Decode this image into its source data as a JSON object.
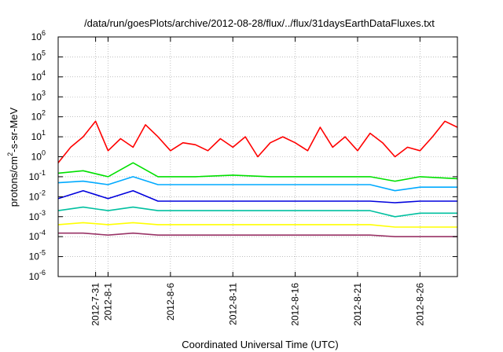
{
  "chart_data": {
    "type": "line",
    "title": "/data/run/goesPlots/archive/2012-08-28/flux/../flux/31daysEarthDataFluxes.txt",
    "xlabel": "Coordinated Universal Time (UTC)",
    "ylabel": "protons/cm2-s-sr-MeV",
    "ylabel_parts": {
      "base": "protons/cm",
      "sup": "2",
      "rest": "-s-sr-MeV"
    },
    "yscale": "log",
    "ylim": [
      1e-06,
      1000000.0
    ],
    "xlim": [
      "2012-07-28",
      "2012-08-29"
    ],
    "grid": true,
    "yticks": [
      {
        "value": 1e-06,
        "base": "10",
        "exp": "-6"
      },
      {
        "value": 1e-05,
        "base": "10",
        "exp": "-5"
      },
      {
        "value": 0.0001,
        "base": "10",
        "exp": "-4"
      },
      {
        "value": 0.001,
        "base": "10",
        "exp": "-3"
      },
      {
        "value": 0.01,
        "base": "10",
        "exp": "-2"
      },
      {
        "value": 0.1,
        "base": "10",
        "exp": "-1"
      },
      {
        "value": 1,
        "base": "10",
        "exp": "0"
      },
      {
        "value": 10.0,
        "base": "10",
        "exp": "1"
      },
      {
        "value": 100.0,
        "base": "10",
        "exp": "2"
      },
      {
        "value": 1000.0,
        "base": "10",
        "exp": "3"
      },
      {
        "value": 10000.0,
        "base": "10",
        "exp": "4"
      },
      {
        "value": 100000.0,
        "base": "10",
        "exp": "5"
      },
      {
        "value": 1000000.0,
        "base": "10",
        "exp": "6"
      }
    ],
    "xticks": [
      {
        "date": "2012-07-31",
        "label": "2012-7-31"
      },
      {
        "date": "2012-08-01",
        "label": "2012-8-1"
      },
      {
        "date": "2012-08-06",
        "label": "2012-8-6"
      },
      {
        "date": "2012-08-11",
        "label": "2012-8-11"
      },
      {
        "date": "2012-08-16",
        "label": "2012-8-16"
      },
      {
        "date": "2012-08-21",
        "label": "2012-8-21"
      },
      {
        "date": "2012-08-26",
        "label": "2012-8-26"
      }
    ],
    "colors": {
      "red": "#ff0000",
      "green": "#00e000",
      "cyan": "#00aaff",
      "blue": "#0000dd",
      "teal": "#00c0a0",
      "yellow": "#ffff00",
      "purple": "#993366"
    },
    "series": [
      {
        "color": "#ff0000",
        "x": [
          "2012-07-28",
          "2012-07-29",
          "2012-07-30",
          "2012-07-31",
          "2012-08-01",
          "2012-08-02",
          "2012-08-03",
          "2012-08-04",
          "2012-08-05",
          "2012-08-06",
          "2012-08-07",
          "2012-08-08",
          "2012-08-09",
          "2012-08-10",
          "2012-08-11",
          "2012-08-12",
          "2012-08-13",
          "2012-08-14",
          "2012-08-15",
          "2012-08-16",
          "2012-08-17",
          "2012-08-18",
          "2012-08-19",
          "2012-08-20",
          "2012-08-21",
          "2012-08-22",
          "2012-08-23",
          "2012-08-24",
          "2012-08-25",
          "2012-08-26",
          "2012-08-27",
          "2012-08-28",
          "2012-08-29"
        ],
        "values": [
          0.5,
          3,
          10,
          60,
          2,
          8,
          3,
          40,
          10,
          2,
          5,
          4,
          2,
          8,
          3,
          10,
          1,
          5,
          10,
          5,
          2,
          30,
          3,
          10,
          2,
          15,
          5,
          1,
          3,
          2,
          10,
          60,
          30
        ]
      },
      {
        "color": "#00e000",
        "x": [
          "2012-07-28",
          "2012-07-30",
          "2012-08-01",
          "2012-08-03",
          "2012-08-05",
          "2012-08-08",
          "2012-08-11",
          "2012-08-14",
          "2012-08-17",
          "2012-08-20",
          "2012-08-22",
          "2012-08-24",
          "2012-08-26",
          "2012-08-29"
        ],
        "values": [
          0.15,
          0.2,
          0.1,
          0.5,
          0.1,
          0.1,
          0.12,
          0.1,
          0.1,
          0.1,
          0.1,
          0.06,
          0.1,
          0.08
        ]
      },
      {
        "color": "#00aaff",
        "x": [
          "2012-07-28",
          "2012-07-30",
          "2012-08-01",
          "2012-08-03",
          "2012-08-05",
          "2012-08-08",
          "2012-08-11",
          "2012-08-14",
          "2012-08-17",
          "2012-08-20",
          "2012-08-22",
          "2012-08-24",
          "2012-08-26",
          "2012-08-29"
        ],
        "values": [
          0.05,
          0.06,
          0.04,
          0.1,
          0.04,
          0.04,
          0.04,
          0.04,
          0.04,
          0.04,
          0.04,
          0.02,
          0.03,
          0.03
        ]
      },
      {
        "color": "#0000dd",
        "x": [
          "2012-07-28",
          "2012-07-30",
          "2012-08-01",
          "2012-08-03",
          "2012-08-05",
          "2012-08-08",
          "2012-08-11",
          "2012-08-14",
          "2012-08-17",
          "2012-08-20",
          "2012-08-22",
          "2012-08-24",
          "2012-08-26",
          "2012-08-29"
        ],
        "values": [
          0.008,
          0.02,
          0.008,
          0.02,
          0.006,
          0.006,
          0.006,
          0.006,
          0.006,
          0.006,
          0.006,
          0.005,
          0.006,
          0.006
        ]
      },
      {
        "color": "#00c0a0",
        "x": [
          "2012-07-28",
          "2012-07-30",
          "2012-08-01",
          "2012-08-03",
          "2012-08-05",
          "2012-08-08",
          "2012-08-11",
          "2012-08-14",
          "2012-08-17",
          "2012-08-20",
          "2012-08-22",
          "2012-08-24",
          "2012-08-26",
          "2012-08-29"
        ],
        "values": [
          0.002,
          0.003,
          0.002,
          0.003,
          0.002,
          0.002,
          0.002,
          0.002,
          0.002,
          0.002,
          0.002,
          0.001,
          0.0015,
          0.0015
        ]
      },
      {
        "color": "#ffff00",
        "x": [
          "2012-07-28",
          "2012-07-30",
          "2012-08-01",
          "2012-08-03",
          "2012-08-05",
          "2012-08-08",
          "2012-08-11",
          "2012-08-14",
          "2012-08-17",
          "2012-08-20",
          "2012-08-22",
          "2012-08-24",
          "2012-08-26",
          "2012-08-29"
        ],
        "values": [
          0.0004,
          0.0005,
          0.0004,
          0.0005,
          0.0004,
          0.0004,
          0.0004,
          0.0004,
          0.0004,
          0.0004,
          0.0004,
          0.0003,
          0.0003,
          0.0003
        ]
      },
      {
        "color": "#993366",
        "x": [
          "2012-07-28",
          "2012-07-30",
          "2012-08-01",
          "2012-08-03",
          "2012-08-05",
          "2012-08-08",
          "2012-08-11",
          "2012-08-14",
          "2012-08-17",
          "2012-08-20",
          "2012-08-22",
          "2012-08-24",
          "2012-08-26",
          "2012-08-29"
        ],
        "values": [
          0.00015,
          0.00015,
          0.00012,
          0.00015,
          0.00012,
          0.00012,
          0.00012,
          0.00012,
          0.00012,
          0.00012,
          0.00012,
          0.0001,
          0.0001,
          0.0001
        ]
      }
    ]
  }
}
